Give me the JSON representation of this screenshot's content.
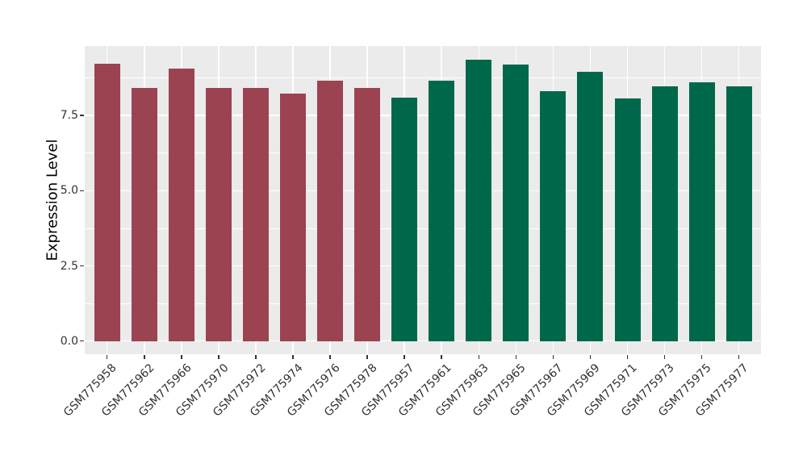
{
  "figure": {
    "background": "#FFFFFF",
    "panel_background": "#EBEBEB",
    "gridline_color": "#FFFFFF",
    "axis_text_color": "#333333",
    "axis_title_color": "#000000"
  },
  "chart_data": {
    "type": "bar",
    "title": "",
    "xlabel": "",
    "ylabel": "Expression Level",
    "categories": [
      "GSM775958",
      "GSM775962",
      "GSM775966",
      "GSM775970",
      "GSM775972",
      "GSM775974",
      "GSM775976",
      "GSM775978",
      "GSM775957",
      "GSM775961",
      "GSM775963",
      "GSM775965",
      "GSM775967",
      "GSM775969",
      "GSM775971",
      "GSM775973",
      "GSM775975",
      "GSM775977"
    ],
    "values": [
      9.21,
      8.41,
      9.07,
      8.43,
      8.43,
      8.23,
      8.66,
      8.41,
      8.1,
      8.66,
      9.36,
      9.2,
      8.31,
      8.95,
      8.08,
      8.47,
      8.61,
      8.47
    ],
    "bar_groups": [
      "red",
      "red",
      "red",
      "red",
      "red",
      "red",
      "red",
      "red",
      "green",
      "green",
      "green",
      "green",
      "green",
      "green",
      "green",
      "green",
      "green",
      "green"
    ],
    "group_colors": {
      "red": "#9C4351",
      "green": "#00684A"
    },
    "y_ticks": [
      0.0,
      2.5,
      5.0,
      7.5
    ],
    "y_tick_labels": [
      "0.0",
      "2.5",
      "5.0",
      "7.5"
    ],
    "y_minor_ticks": [
      1.25,
      3.75,
      6.25,
      8.75
    ],
    "ylim": [
      0,
      9.81
    ],
    "grid": true,
    "legend": false
  }
}
